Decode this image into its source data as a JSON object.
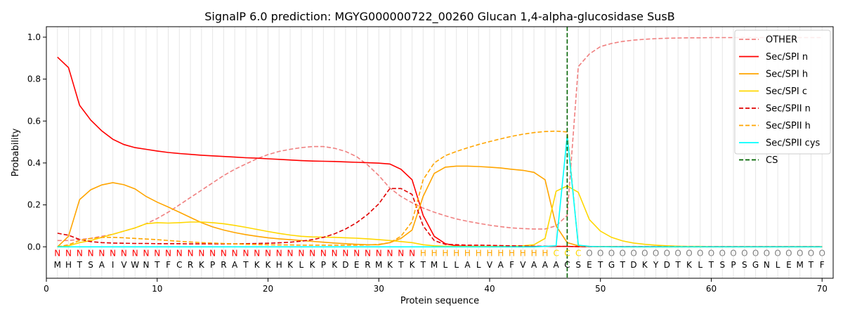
{
  "chart_data": {
    "type": "line",
    "title": "SignalP 6.0 prediction: MGYG000000722_00260 Glucan 1,4-alpha-glucosidase SusB",
    "xlabel": "Protein sequence",
    "ylabel": "Probability",
    "xlim": [
      0,
      71
    ],
    "ylim": [
      -0.15,
      1.05
    ],
    "xticks": [
      0,
      10,
      20,
      30,
      40,
      50,
      60,
      70
    ],
    "yticks": [
      0.0,
      0.2,
      0.4,
      0.6,
      0.8,
      1.0
    ],
    "xtick_labels": [
      "0",
      "10",
      "20",
      "30",
      "40",
      "50",
      "60",
      "70"
    ],
    "ytick_labels": [
      "0.0",
      "0.2",
      "0.4",
      "0.6",
      "0.8",
      "1.0"
    ],
    "grid": "vertical lines at each residue",
    "legend_position": "top-right",
    "sequence": [
      "M",
      "H",
      "T",
      "S",
      "A",
      "I",
      "V",
      "W",
      "N",
      "T",
      "F",
      "C",
      "R",
      "K",
      "P",
      "R",
      "A",
      "T",
      "K",
      "K",
      "H",
      "K",
      "L",
      "K",
      "P",
      "K",
      "D",
      "E",
      "R",
      "M",
      "K",
      "T",
      "K",
      "T",
      "M",
      "L",
      "L",
      "A",
      "L",
      "V",
      "A",
      "F",
      "V",
      "A",
      "A",
      "A",
      "C",
      "S",
      "E",
      "T",
      "G",
      "T",
      "D",
      "K",
      "Y",
      "D",
      "T",
      "K",
      "L",
      "T",
      "S",
      "P",
      "S",
      "G",
      "N",
      "L",
      "E",
      "M",
      "T",
      "F"
    ],
    "labels": [
      "N",
      "N",
      "N",
      "N",
      "N",
      "N",
      "N",
      "N",
      "N",
      "N",
      "N",
      "N",
      "N",
      "N",
      "N",
      "N",
      "N",
      "N",
      "N",
      "N",
      "N",
      "N",
      "N",
      "N",
      "N",
      "N",
      "N",
      "N",
      "N",
      "N",
      "N",
      "N",
      "N",
      "H",
      "H",
      "H",
      "H",
      "H",
      "H",
      "H",
      "H",
      "H",
      "H",
      "H",
      "H",
      "C",
      "C",
      "C",
      "O",
      "O",
      "O",
      "O",
      "O",
      "O",
      "O",
      "O",
      "O",
      "O",
      "O",
      "O",
      "O",
      "O",
      "O",
      "O",
      "O",
      "O",
      "O",
      "O",
      "O",
      "O"
    ],
    "label_colors": {
      "N": "#ff0000",
      "H": "#ffa500",
      "C": "#ffd700",
      "O": "#808080"
    },
    "cleavage_site": 47,
    "series": [
      {
        "name": "OTHER",
        "color": "#f08080",
        "dash": "dashed",
        "values": [
          0.03,
          0.03,
          0.035,
          0.04,
          0.05,
          0.06,
          0.075,
          0.09,
          0.11,
          0.135,
          0.165,
          0.2,
          0.235,
          0.27,
          0.305,
          0.34,
          0.37,
          0.395,
          0.42,
          0.44,
          0.455,
          0.465,
          0.473,
          0.478,
          0.478,
          0.47,
          0.455,
          0.43,
          0.39,
          0.34,
          0.28,
          0.24,
          0.21,
          0.185,
          0.165,
          0.148,
          0.133,
          0.122,
          0.112,
          0.103,
          0.096,
          0.09,
          0.087,
          0.085,
          0.085,
          0.1,
          0.15,
          0.86,
          0.92,
          0.955,
          0.97,
          0.98,
          0.986,
          0.99,
          0.993,
          0.995,
          0.996,
          0.997,
          0.997,
          0.998,
          0.998,
          0.998,
          0.998,
          0.998,
          0.998,
          0.998,
          0.998,
          0.998,
          0.998,
          0.998
        ]
      },
      {
        "name": "Sec/SPI n",
        "color": "#ff0000",
        "dash": "solid",
        "values": [
          0.905,
          0.855,
          0.675,
          0.605,
          0.553,
          0.513,
          0.488,
          0.473,
          0.465,
          0.457,
          0.45,
          0.445,
          0.441,
          0.437,
          0.434,
          0.431,
          0.428,
          0.425,
          0.423,
          0.42,
          0.417,
          0.414,
          0.411,
          0.409,
          0.408,
          0.407,
          0.405,
          0.403,
          0.401,
          0.399,
          0.395,
          0.37,
          0.32,
          0.15,
          0.05,
          0.015,
          0.005,
          0.003,
          0.002,
          0.002,
          0.002,
          0.002,
          0.002,
          0.002,
          0.002,
          0.002,
          0.002,
          0.001,
          0.001,
          0.001,
          0.001,
          0.001,
          0.001,
          0.001,
          0.001,
          0.001,
          0.001,
          0.001,
          0.001,
          0.001,
          0.001,
          0.001,
          0.001,
          0.001,
          0.001,
          0.001,
          0.001,
          0.001,
          0.001,
          0.001
        ]
      },
      {
        "name": "Sec/SPI h",
        "color": "#ffa500",
        "dash": "solid",
        "values": [
          0.0,
          0.05,
          0.225,
          0.272,
          0.295,
          0.306,
          0.296,
          0.276,
          0.24,
          0.213,
          0.19,
          0.165,
          0.14,
          0.115,
          0.095,
          0.08,
          0.068,
          0.058,
          0.05,
          0.043,
          0.038,
          0.034,
          0.03,
          0.026,
          0.022,
          0.018,
          0.015,
          0.012,
          0.01,
          0.01,
          0.02,
          0.04,
          0.08,
          0.24,
          0.35,
          0.38,
          0.385,
          0.385,
          0.383,
          0.38,
          0.376,
          0.37,
          0.365,
          0.355,
          0.32,
          0.1,
          0.02,
          0.005,
          0.002,
          0.001,
          0.001,
          0.0,
          0.0,
          0.0,
          0.0,
          0.0,
          0.0,
          0.0,
          0.0,
          0.0,
          0.0,
          0.0,
          0.0,
          0.0,
          0.0,
          0.0,
          0.0,
          0.0,
          0.0,
          0.0
        ]
      },
      {
        "name": "Sec/SPI c",
        "color": "#ffd700",
        "dash": "solid",
        "values": [
          0.0,
          0.005,
          0.02,
          0.03,
          0.045,
          0.06,
          0.075,
          0.09,
          0.11,
          0.115,
          0.113,
          0.115,
          0.118,
          0.118,
          0.115,
          0.11,
          0.102,
          0.093,
          0.083,
          0.073,
          0.064,
          0.056,
          0.05,
          0.047,
          0.046,
          0.045,
          0.043,
          0.041,
          0.038,
          0.034,
          0.03,
          0.025,
          0.02,
          0.01,
          0.005,
          0.003,
          0.002,
          0.002,
          0.002,
          0.002,
          0.002,
          0.003,
          0.005,
          0.01,
          0.04,
          0.265,
          0.29,
          0.26,
          0.13,
          0.075,
          0.045,
          0.028,
          0.018,
          0.012,
          0.008,
          0.005,
          0.003,
          0.002,
          0.002,
          0.001,
          0.001,
          0.001,
          0.001,
          0.001,
          0.001,
          0.001,
          0.001,
          0.001,
          0.001,
          0.001
        ]
      },
      {
        "name": "Sec/SPII n",
        "color": "#e00000",
        "dash": "dashed",
        "values": [
          0.065,
          0.055,
          0.035,
          0.025,
          0.02,
          0.018,
          0.017,
          0.016,
          0.016,
          0.015,
          0.015,
          0.015,
          0.014,
          0.014,
          0.014,
          0.014,
          0.014,
          0.015,
          0.016,
          0.017,
          0.019,
          0.022,
          0.027,
          0.034,
          0.045,
          0.062,
          0.085,
          0.115,
          0.155,
          0.205,
          0.278,
          0.278,
          0.25,
          0.1,
          0.03,
          0.012,
          0.01,
          0.008,
          0.008,
          0.007,
          0.006,
          0.005,
          0.004,
          0.003,
          0.003,
          0.002,
          0.002,
          0.001,
          0.001,
          0.001,
          0.001,
          0.001,
          0.001,
          0.001,
          0.001,
          0.001,
          0.001,
          0.001,
          0.001,
          0.001,
          0.001,
          0.001,
          0.001,
          0.001,
          0.001,
          0.001,
          0.001,
          0.001,
          0.001,
          0.001
        ]
      },
      {
        "name": "Sec/SPII h",
        "color": "#ffa500",
        "dash": "dashed",
        "values": [
          0.0,
          0.01,
          0.03,
          0.04,
          0.045,
          0.045,
          0.043,
          0.04,
          0.037,
          0.034,
          0.03,
          0.026,
          0.023,
          0.02,
          0.018,
          0.016,
          0.014,
          0.012,
          0.011,
          0.01,
          0.009,
          0.009,
          0.008,
          0.008,
          0.008,
          0.008,
          0.008,
          0.008,
          0.009,
          0.012,
          0.02,
          0.05,
          0.12,
          0.32,
          0.4,
          0.435,
          0.455,
          0.472,
          0.488,
          0.502,
          0.515,
          0.527,
          0.537,
          0.545,
          0.55,
          0.552,
          0.548,
          0.005,
          0.002,
          0.001,
          0.001,
          0.0,
          0.0,
          0.0,
          0.0,
          0.0,
          0.0,
          0.0,
          0.0,
          0.0,
          0.0,
          0.0,
          0.0,
          0.0,
          0.0,
          0.0,
          0.0,
          0.0,
          0.0,
          0.0
        ]
      },
      {
        "name": "Sec/SPII cys",
        "color": "#00ffff",
        "dash": "solid",
        "values": [
          0.0,
          0.0,
          0.0,
          0.0,
          0.0,
          0.0,
          0.0,
          0.0,
          0.0,
          0.0,
          0.0,
          0.0,
          0.0,
          0.0,
          0.0,
          0.0,
          0.0,
          0.0,
          0.0,
          0.0,
          0.0,
          0.0,
          0.0,
          0.0,
          0.0,
          0.0,
          0.0,
          0.0,
          0.0,
          0.0,
          0.0,
          0.0,
          0.0,
          0.0,
          0.0,
          0.0,
          0.0,
          0.0,
          0.0,
          0.0,
          0.0,
          0.0,
          0.0,
          0.0,
          0.002,
          0.005,
          0.53,
          0.008,
          0.002,
          0.001,
          0.0,
          0.0,
          0.0,
          0.0,
          0.0,
          0.0,
          0.0,
          0.0,
          0.0,
          0.0,
          0.0,
          0.0,
          0.0,
          0.0,
          0.0,
          0.0,
          0.0,
          0.0,
          0.0,
          0.0
        ]
      }
    ],
    "cs_legend": {
      "name": "CS",
      "color": "#006400",
      "dash": "dashed"
    }
  }
}
